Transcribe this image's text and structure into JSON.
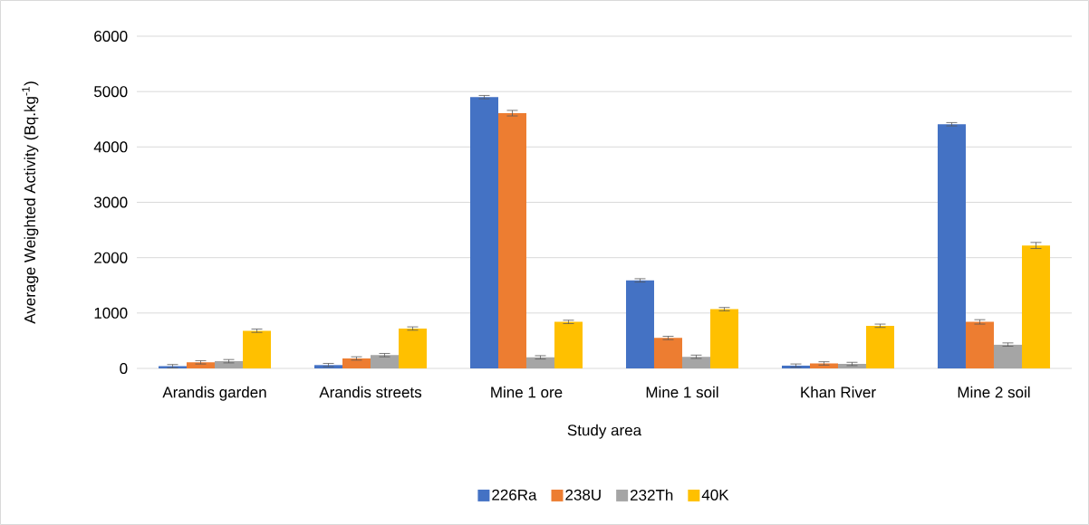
{
  "chart_data": {
    "type": "bar",
    "xlabel": "Study area",
    "ylabel": "Average Weighted Activity (Bq.kg$^{-1}$)",
    "categories": [
      "Arandis garden",
      "Arandis streets",
      "Mine 1 ore",
      "Mine 1 soil",
      "Khan River",
      "Mine 2 soil"
    ],
    "series": [
      {
        "name": "226Ra",
        "color": "#4472c4",
        "values": [
          40,
          60,
          4900,
          1590,
          50,
          4410
        ],
        "errors": [
          30,
          30,
          30,
          30,
          30,
          30
        ]
      },
      {
        "name": "238U",
        "color": "#ed7d31",
        "values": [
          110,
          180,
          4610,
          550,
          90,
          840
        ],
        "errors": [
          30,
          30,
          50,
          30,
          30,
          40
        ]
      },
      {
        "name": "232Th",
        "color": "#a5a5a5",
        "values": [
          130,
          240,
          200,
          210,
          80,
          430
        ],
        "errors": [
          30,
          30,
          30,
          30,
          30,
          30
        ]
      },
      {
        "name": "40K",
        "color": "#ffc000",
        "values": [
          680,
          720,
          840,
          1070,
          770,
          2220
        ],
        "errors": [
          30,
          30,
          30,
          30,
          30,
          55
        ]
      }
    ],
    "ylim": [
      0,
      6000
    ],
    "yticks": [
      0,
      1000,
      2000,
      3000,
      4000,
      5000,
      6000
    ],
    "grid": "y",
    "legend": "bottom"
  }
}
